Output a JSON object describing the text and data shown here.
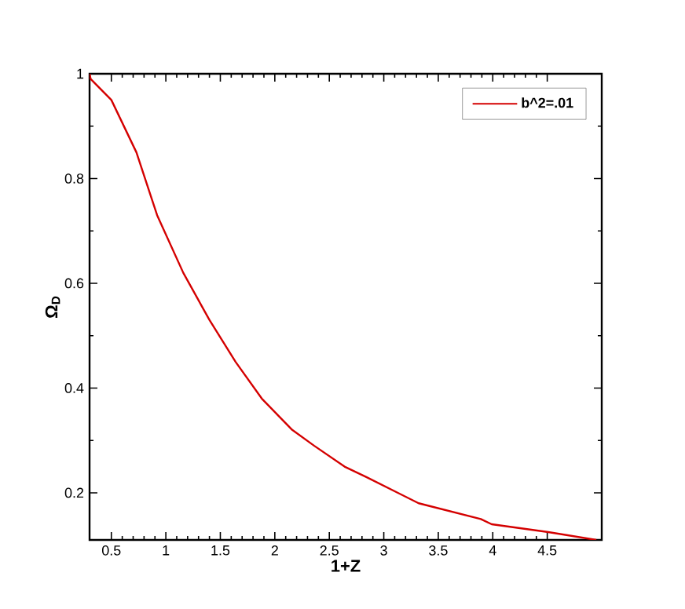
{
  "chart_data": {
    "type": "line",
    "xlabel": "1+Z",
    "ylabel": "Ω$_{D}$",
    "xlim": [
      0.3,
      5
    ],
    "ylim": [
      0.11,
      1
    ],
    "xticks": [
      0.5,
      1,
      1.5,
      2,
      2.5,
      3,
      3.5,
      4,
      4.5
    ],
    "yticks": [
      0.2,
      0.4,
      0.6,
      0.8,
      1
    ],
    "legend": "top right",
    "grid": false,
    "marker": "none",
    "line_style": "solid",
    "series": [
      {
        "name": "b^2=.01",
        "color": "#d40000",
        "x": [
          0.3,
          0.31,
          0.5,
          0.73,
          0.92,
          1.16,
          1.4,
          1.64,
          1.88,
          2.16,
          2.36,
          2.64,
          2.84,
          3.32,
          3.89,
          3.99,
          4.51,
          4.95
        ],
        "values": [
          1.0,
          0.99,
          0.95,
          0.85,
          0.73,
          0.62,
          0.53,
          0.45,
          0.38,
          0.32,
          0.29,
          0.25,
          0.23,
          0.18,
          0.15,
          0.14,
          0.125,
          0.11
        ]
      }
    ]
  }
}
